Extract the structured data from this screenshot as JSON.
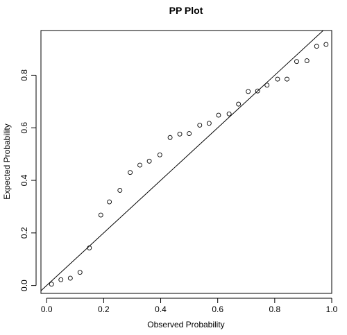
{
  "chart_data": {
    "type": "scatter",
    "title": "PP Plot",
    "xlabel": "Observed Probability",
    "ylabel": "Expected Probability",
    "xlim": [
      -0.02,
      1.0
    ],
    "ylim": [
      -0.03,
      0.97
    ],
    "x_ticks": [
      "0.0",
      "0.2",
      "0.4",
      "0.6",
      "0.8",
      "1.0"
    ],
    "y_ticks": [
      "0.0",
      "0.2",
      "0.4",
      "0.6",
      "0.8"
    ],
    "grid": false,
    "legend": "none",
    "reference_line": {
      "slope": 1.0,
      "intercept": 0.0
    },
    "series": [
      {
        "marker": "open-circle",
        "x": [
          0.017,
          0.05,
          0.083,
          0.117,
          0.15,
          0.19,
          0.22,
          0.257,
          0.293,
          0.327,
          0.36,
          0.397,
          0.433,
          0.467,
          0.5,
          0.537,
          0.57,
          0.603,
          0.64,
          0.673,
          0.707,
          0.74,
          0.773,
          0.81,
          0.843,
          0.877,
          0.913,
          0.947,
          0.98
        ],
        "y": [
          0.005,
          0.022,
          0.028,
          0.05,
          0.143,
          0.268,
          0.318,
          0.362,
          0.43,
          0.458,
          0.473,
          0.497,
          0.563,
          0.576,
          0.578,
          0.61,
          0.617,
          0.648,
          0.653,
          0.69,
          0.738,
          0.74,
          0.762,
          0.785,
          0.785,
          0.852,
          0.855,
          0.91,
          0.917
        ]
      }
    ]
  }
}
